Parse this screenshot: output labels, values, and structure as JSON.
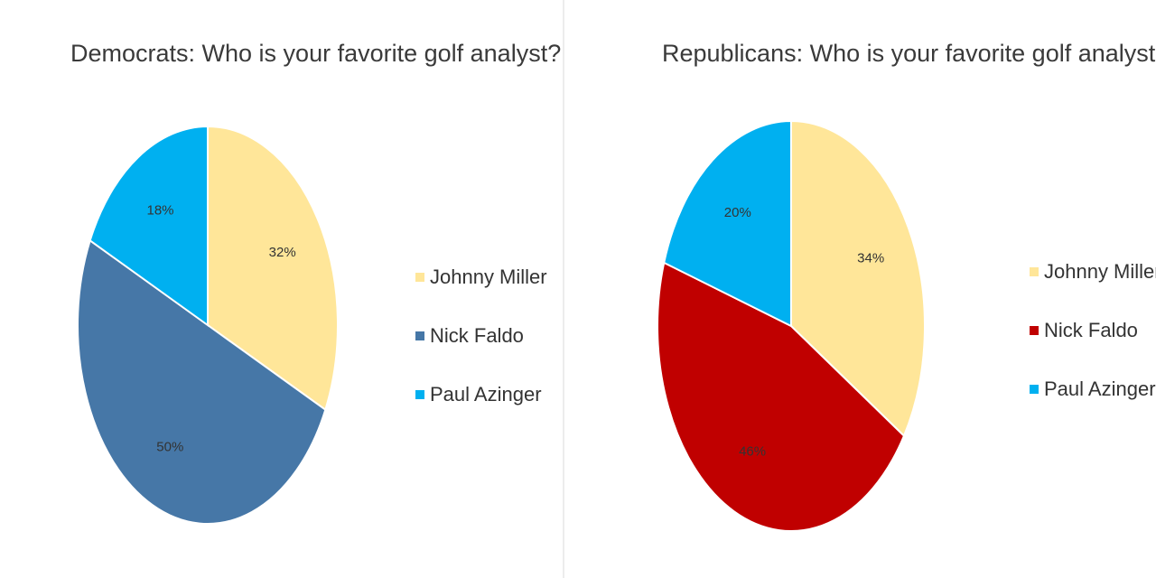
{
  "chart_data": [
    {
      "type": "pie",
      "title": "Democrats: Who is your favorite golf analyst?",
      "legend_position": "right",
      "categories": [
        "Johnny Miller",
        "Nick Faldo",
        "Paul Azinger"
      ],
      "values": [
        32,
        50,
        18
      ],
      "value_labels": [
        "32%",
        "50%",
        "18%"
      ],
      "colors": [
        "#FFE699",
        "#4677A7",
        "#00B0F0"
      ]
    },
    {
      "type": "pie",
      "title": "Republicans: Who is your favorite golf analyst?",
      "legend_position": "right",
      "categories": [
        "Johnny Miller",
        "Nick Faldo",
        "Paul Azinger"
      ],
      "values": [
        34,
        46,
        20
      ],
      "value_labels": [
        "34%",
        "46%",
        "20%"
      ],
      "colors": [
        "#FFE699",
        "#C00000",
        "#00B0F0"
      ]
    }
  ]
}
